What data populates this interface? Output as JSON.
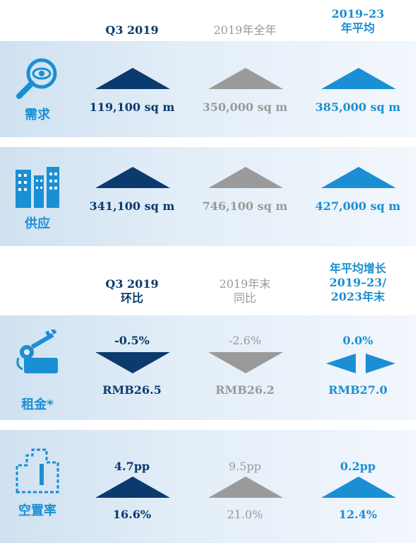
{
  "colors": {
    "navy": "#0b3a6e",
    "grey": "#9a9a9a",
    "cyan": "#1a8fd4"
  },
  "header1": {
    "col1": "Q3 2019",
    "col2": "2019年全年",
    "col3_line1": "2019–23",
    "col3_line2": "年平均"
  },
  "demand": {
    "label": "需求",
    "icon": "magnifier-eye-icon",
    "q3": "119,100 sq m",
    "year": "350,000 sq m",
    "avg": "385,000 sq m",
    "trend": [
      "up",
      "up",
      "up"
    ]
  },
  "supply": {
    "label": "供应",
    "icon": "buildings-icon",
    "q3": "341,100 sq m",
    "year": "746,100 sq m",
    "avg": "427,000 sq m",
    "trend": [
      "up",
      "up",
      "up"
    ]
  },
  "header2": {
    "col1_line1": "Q3 2019",
    "col1_line2": "环比",
    "col2_line1": "2019年末",
    "col2_line2": "同比",
    "col3_line1": "年平均增长",
    "col3_line2": "2019–23/",
    "col3_line3": "2023年末"
  },
  "rent": {
    "label": "租金*",
    "icon": "key-hand-icon",
    "q3_change": "-0.5%",
    "year_change": "-2.6%",
    "avg_change": "0.0%",
    "q3_value": "RMB26.5",
    "year_value": "RMB26.2",
    "avg_value": "RMB27.0",
    "trend": [
      "down",
      "down",
      "flat"
    ]
  },
  "vacancy": {
    "label": "空置率",
    "icon": "vacant-building-icon",
    "q3_change": "4.7pp",
    "year_change": "9.5pp",
    "avg_change": "0.2pp",
    "q3_value": "16.6%",
    "year_value": "21.0%",
    "avg_value": "12.4%",
    "trend": [
      "up",
      "up",
      "up"
    ]
  }
}
